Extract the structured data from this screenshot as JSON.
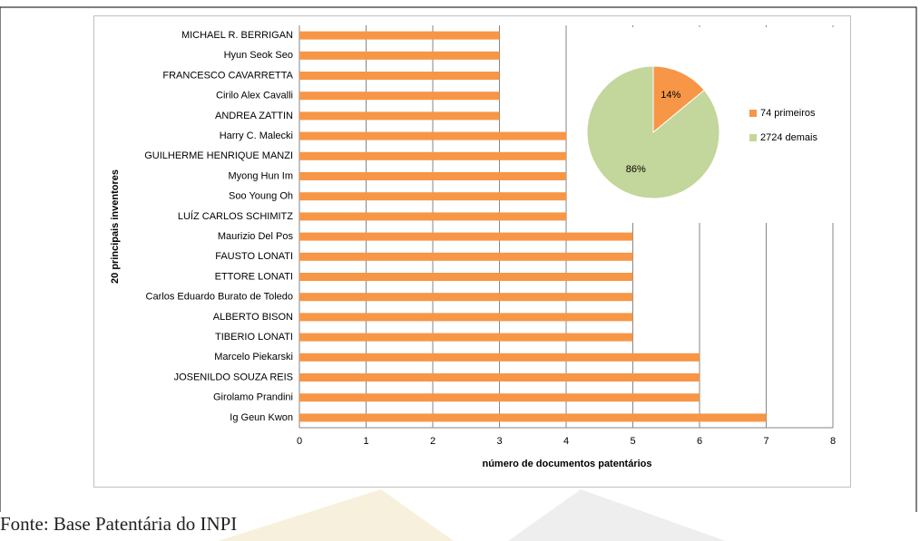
{
  "chart_data": [
    {
      "type": "bar",
      "orientation": "horizontal",
      "y_label": "20 principais inventores",
      "x_label": "número de documentos patentários",
      "categories": [
        "MICHAEL R. BERRIGAN",
        "Hyun Seok Seo",
        "FRANCESCO CAVARRETTA",
        "Cirilo Alex Cavalli",
        "ANDREA ZATTIN",
        "Harry C. Malecki",
        "GUILHERME HENRIQUE MANZI",
        "Myong Hun Im",
        "Soo Young Oh",
        "LUÍZ CARLOS SCHIMITZ",
        "Maurizio Del Pos",
        "FAUSTO LONATI",
        "ETTORE LONATI",
        "Carlos Eduardo Burato de Toledo",
        "ALBERTO BISON",
        "TIBERIO LONATI",
        "Marcelo Piekarski",
        "JOSENILDO SOUZA REIS",
        "Girolamo Prandini",
        "Ig Geun Kwon"
      ],
      "values": [
        3,
        3,
        3,
        3,
        3,
        4,
        4,
        4,
        4,
        4,
        5,
        5,
        5,
        5,
        5,
        5,
        6,
        6,
        6,
        7
      ],
      "color": "#f79646",
      "xlim": [
        0,
        8
      ],
      "xticks": [
        0,
        1,
        2,
        3,
        4,
        5,
        6,
        7,
        8
      ],
      "grid": true
    },
    {
      "type": "pie",
      "categories": [
        "74 primeiros",
        "2724 demais"
      ],
      "values": [
        14,
        86
      ],
      "value_labels": [
        "14%",
        "86%"
      ],
      "colors": [
        "#f79646",
        "#c3d69b"
      ],
      "legend": "right"
    }
  ],
  "caption": "Fonte: Base Patentária do INPI"
}
